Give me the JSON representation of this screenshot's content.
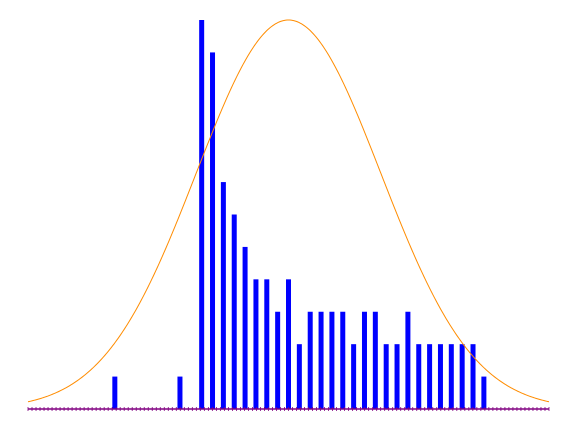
{
  "chart_data": {
    "type": "bar",
    "x_min": 0,
    "x_max": 48,
    "y_max": 12,
    "grid": false,
    "bars": [
      {
        "x": 8,
        "value": 1
      },
      {
        "x": 14,
        "value": 1
      },
      {
        "x": 16,
        "value": 12
      },
      {
        "x": 17,
        "value": 11
      },
      {
        "x": 18,
        "value": 7
      },
      {
        "x": 19,
        "value": 6
      },
      {
        "x": 20,
        "value": 5
      },
      {
        "x": 21,
        "value": 4
      },
      {
        "x": 22,
        "value": 4
      },
      {
        "x": 23,
        "value": 3
      },
      {
        "x": 24,
        "value": 4
      },
      {
        "x": 25,
        "value": 2
      },
      {
        "x": 26,
        "value": 3
      },
      {
        "x": 27,
        "value": 3
      },
      {
        "x": 28,
        "value": 3
      },
      {
        "x": 29,
        "value": 3
      },
      {
        "x": 30,
        "value": 2
      },
      {
        "x": 31,
        "value": 3
      },
      {
        "x": 32,
        "value": 3
      },
      {
        "x": 33,
        "value": 2
      },
      {
        "x": 34,
        "value": 2
      },
      {
        "x": 35,
        "value": 3
      },
      {
        "x": 36,
        "value": 2
      },
      {
        "x": 37,
        "value": 2
      },
      {
        "x": 38,
        "value": 2
      },
      {
        "x": 39,
        "value": 2
      },
      {
        "x": 40,
        "value": 2
      },
      {
        "x": 41,
        "value": 2
      },
      {
        "x": 42,
        "value": 1
      }
    ],
    "curve": {
      "type": "normal",
      "mean": 24,
      "sd": 8.5,
      "peak": 12
    },
    "colors": {
      "bars": "#0000ff",
      "curve": "#ff8c00",
      "axis": "#800080"
    }
  }
}
